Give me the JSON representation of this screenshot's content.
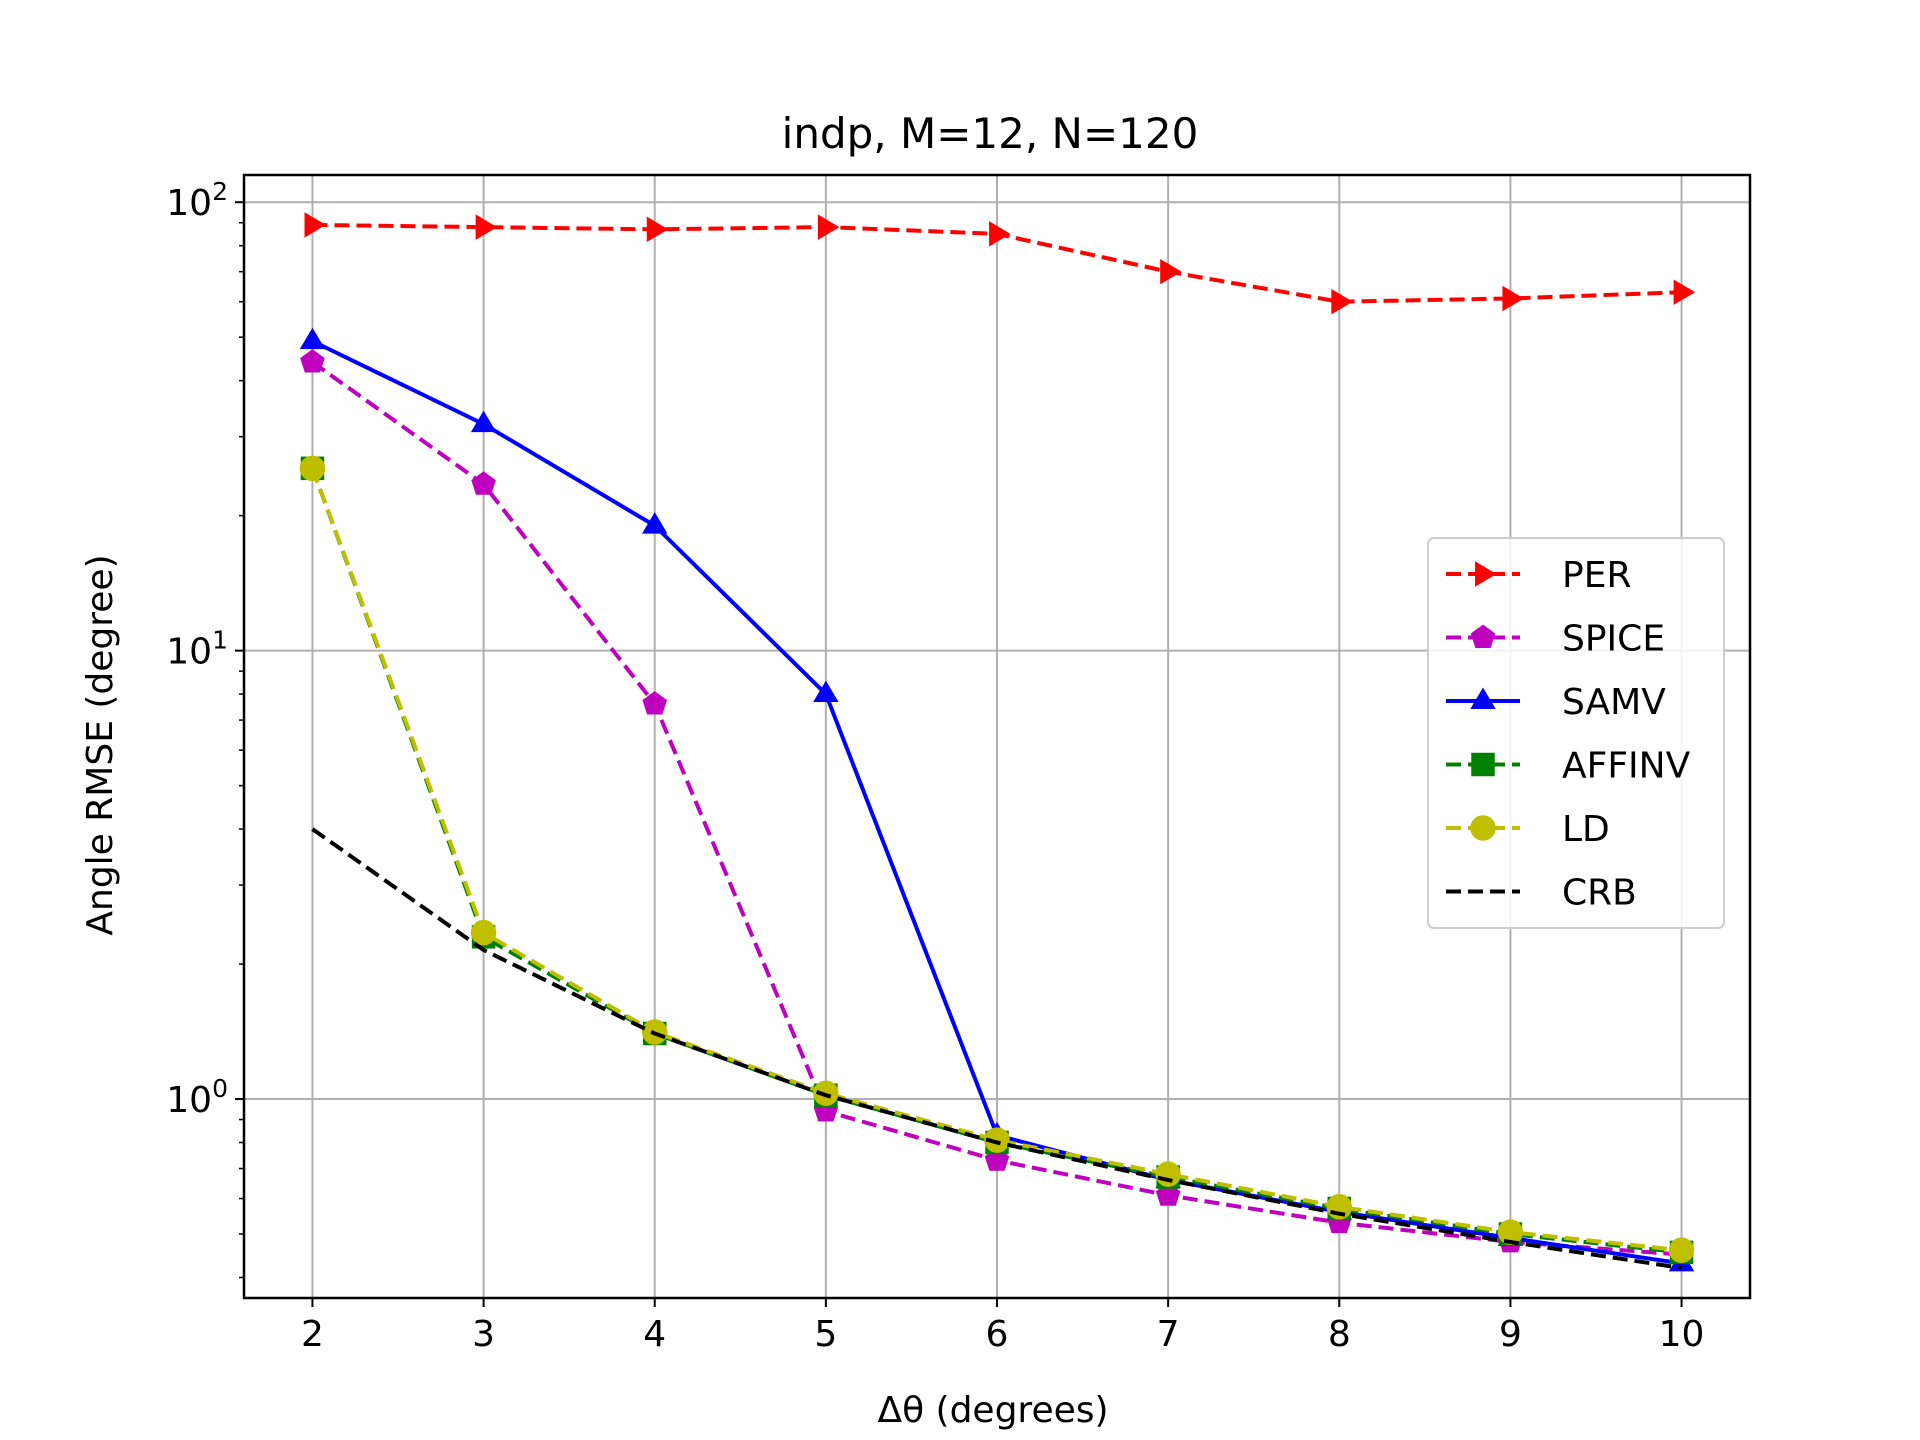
{
  "chart_data": {
    "type": "line",
    "title": "indp, M=12, N=120",
    "xlabel": "Δθ (degrees)",
    "ylabel": "Angle RMSE (degree)",
    "yscale": "log",
    "xlim": [
      1.6,
      10.4
    ],
    "ylim": [
      0.36,
      115
    ],
    "grid": true,
    "legend_position": "center-right",
    "x": [
      2,
      3,
      4,
      5,
      6,
      7,
      8,
      9,
      10
    ],
    "x_tick_labels": [
      "2",
      "3",
      "4",
      "5",
      "6",
      "7",
      "8",
      "9",
      "10"
    ],
    "y_ticks": [
      {
        "value": 1,
        "base": "10",
        "exp": "0"
      },
      {
        "value": 10,
        "base": "10",
        "exp": "1"
      },
      {
        "value": 100,
        "base": "10",
        "exp": "2"
      }
    ],
    "series": [
      {
        "name": "PER",
        "color": "#ff0000",
        "marker": "triangle-right",
        "dash": "dashed",
        "values": [
          89,
          88,
          87,
          88,
          85,
          70,
          60,
          61,
          63
        ]
      },
      {
        "name": "SPICE",
        "color": "#bf00bf",
        "marker": "pentagon",
        "dash": "dashed",
        "values": [
          44,
          23.5,
          7.6,
          0.94,
          0.73,
          0.61,
          0.53,
          0.48,
          0.45
        ]
      },
      {
        "name": "SAMV",
        "color": "#0000ff",
        "marker": "triangle-up",
        "dash": "solid",
        "values": [
          49,
          32,
          19,
          8.0,
          0.83,
          0.66,
          0.56,
          0.49,
          0.43
        ]
      },
      {
        "name": "AFFINV",
        "color": "#008000",
        "marker": "square",
        "dash": "dashed",
        "values": [
          25.5,
          2.3,
          1.4,
          1.02,
          0.8,
          0.67,
          0.57,
          0.5,
          0.455
        ]
      },
      {
        "name": "LD",
        "color": "#bfbf00",
        "marker": "circle",
        "dash": "dashed",
        "values": [
          25.5,
          2.35,
          1.41,
          1.03,
          0.81,
          0.68,
          0.575,
          0.505,
          0.46
        ]
      },
      {
        "name": "CRB",
        "color": "#000000",
        "marker": "none",
        "dash": "dashed",
        "values": [
          4.0,
          2.15,
          1.4,
          1.02,
          0.8,
          0.66,
          0.555,
          0.48,
          0.42
        ]
      }
    ]
  }
}
